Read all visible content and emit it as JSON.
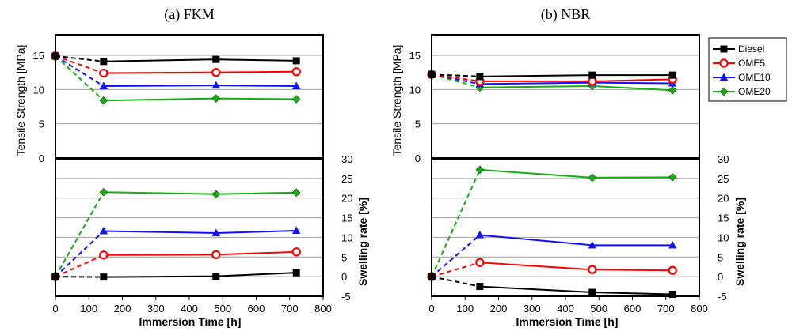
{
  "colors": {
    "Diesel": "#000000",
    "OME5": "#ff0000",
    "OME10": "#1010ff",
    "OME20": "#10b010",
    "grid": "#a0a0a0"
  },
  "markers": {
    "Diesel": "square",
    "OME5": "circle",
    "OME10": "triangle",
    "OME20": "diamond"
  },
  "legend": {
    "placement": "right of panel (b)",
    "entries": [
      "Diesel",
      "OME5",
      "OME10",
      "OME20"
    ]
  },
  "chart_data": [
    {
      "type": "line",
      "title": "(a)   FKM",
      "xlabel": "Immersion Time [h]",
      "xlim": [
        0,
        800
      ],
      "xticks": [
        "0",
        "100",
        "200",
        "300",
        "400",
        "500",
        "600",
        "700",
        "800"
      ],
      "dashed_segment": "first interval (0 to 144 h)",
      "top": {
        "ylabel": "Tensile Strength [MPa]",
        "ylim": [
          0,
          18
        ],
        "yticks": [
          "0",
          "5",
          "10",
          "15"
        ],
        "grid": true,
        "x": [
          0,
          144,
          480,
          720
        ],
        "series": [
          {
            "name": "Diesel",
            "values": [
              14.9,
              14.1,
              14.4,
              14.2
            ]
          },
          {
            "name": "OME5",
            "values": [
              14.9,
              12.4,
              12.5,
              12.6
            ]
          },
          {
            "name": "OME10",
            "values": [
              14.9,
              10.5,
              10.6,
              10.5
            ]
          },
          {
            "name": "OME20",
            "values": [
              14.9,
              8.4,
              8.7,
              8.6
            ]
          }
        ]
      },
      "bottom": {
        "ylabel": "Swelling rate [%]",
        "ylim": [
          -5,
          30
        ],
        "yticks": [
          "-5",
          "0",
          "5",
          "10",
          "15",
          "20",
          "25",
          "30"
        ],
        "grid": true,
        "x": [
          0,
          144,
          480,
          720
        ],
        "series": [
          {
            "name": "Diesel",
            "values": [
              0,
              -0.1,
              0.1,
              1.0
            ]
          },
          {
            "name": "OME5",
            "values": [
              0,
              5.5,
              5.6,
              6.3
            ]
          },
          {
            "name": "OME10",
            "values": [
              0,
              11.6,
              11.1,
              11.7
            ]
          },
          {
            "name": "OME20",
            "values": [
              0,
              21.5,
              21.0,
              21.4
            ]
          }
        ]
      }
    },
    {
      "type": "line",
      "title": "(b)   NBR",
      "xlabel": "Immersion Time [h]",
      "xlim": [
        0,
        800
      ],
      "xticks": [
        "0",
        "100",
        "200",
        "300",
        "400",
        "500",
        "600",
        "700",
        "800"
      ],
      "dashed_segment": "first interval (0 to 144 h)",
      "top": {
        "ylabel": "Tensile Strength [MPa]",
        "ylim": [
          0,
          18
        ],
        "yticks": [
          "0",
          "5",
          "10",
          "15"
        ],
        "grid": true,
        "x": [
          0,
          144,
          480,
          720
        ],
        "series": [
          {
            "name": "Diesel",
            "values": [
              12.2,
              11.9,
              12.1,
              12.1
            ]
          },
          {
            "name": "OME5",
            "values": [
              12.2,
              11.2,
              11.2,
              11.5
            ]
          },
          {
            "name": "OME10",
            "values": [
              12.2,
              10.8,
              11.0,
              10.9
            ]
          },
          {
            "name": "OME20",
            "values": [
              12.2,
              10.3,
              10.5,
              9.9
            ]
          }
        ]
      },
      "bottom": {
        "ylabel": "Swelling rate [%]",
        "ylim": [
          -5,
          30
        ],
        "yticks": [
          "-5",
          "0",
          "5",
          "10",
          "15",
          "20",
          "25",
          "30"
        ],
        "grid": true,
        "x": [
          0,
          144,
          480,
          720
        ],
        "series": [
          {
            "name": "Diesel",
            "values": [
              0,
              -2.5,
              -4.0,
              -4.5
            ]
          },
          {
            "name": "OME5",
            "values": [
              0,
              3.6,
              1.8,
              1.6
            ]
          },
          {
            "name": "OME10",
            "values": [
              0,
              10.6,
              8.0,
              8.0
            ]
          },
          {
            "name": "OME20",
            "values": [
              0,
              27.2,
              25.2,
              25.3
            ]
          }
        ]
      }
    }
  ]
}
